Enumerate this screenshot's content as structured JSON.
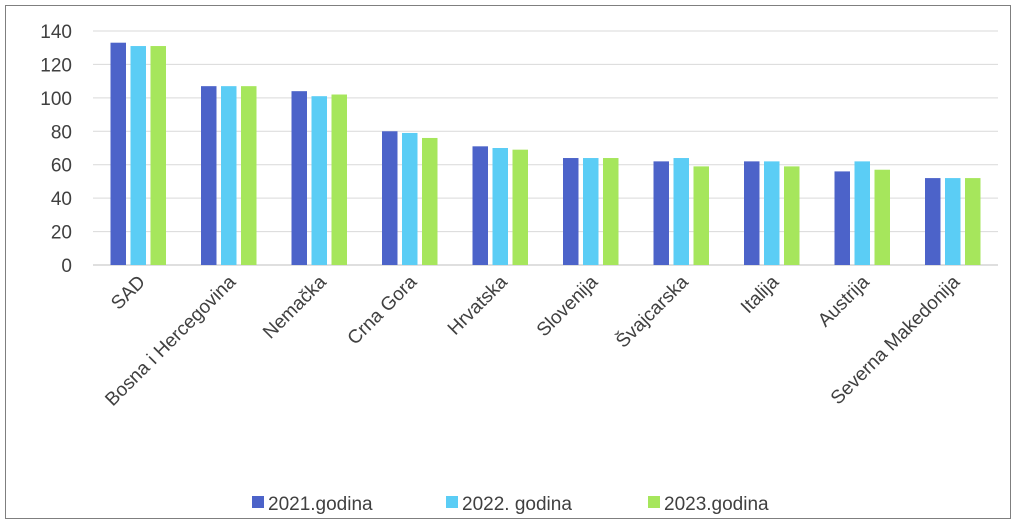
{
  "chart_data": {
    "type": "bar",
    "categories": [
      "SAD",
      "Bosna i Hercegovina",
      "Nemačka",
      "Crna Gora",
      "Hrvatska",
      "Slovenija",
      "Švajcarska",
      "Italija",
      "Austrija",
      "Severna Makedonija"
    ],
    "series": [
      {
        "name": "2021.godina",
        "color": "#4c63c9",
        "values": [
          133,
          107,
          104,
          80,
          71,
          64,
          62,
          62,
          56,
          52
        ]
      },
      {
        "name": "2022. godina",
        "color": "#5bcdf5",
        "values": [
          131,
          107,
          101,
          79,
          70,
          64,
          64,
          62,
          62,
          52
        ]
      },
      {
        "name": "2023.godina",
        "color": "#a6e65c",
        "values": [
          131,
          107,
          102,
          76,
          69,
          64,
          59,
          59,
          57,
          52
        ]
      }
    ],
    "yticks": [
      0,
      20,
      40,
      60,
      80,
      100,
      120,
      140
    ],
    "ylim": [
      0,
      140
    ],
    "grid": true,
    "legend_position": "bottom"
  }
}
